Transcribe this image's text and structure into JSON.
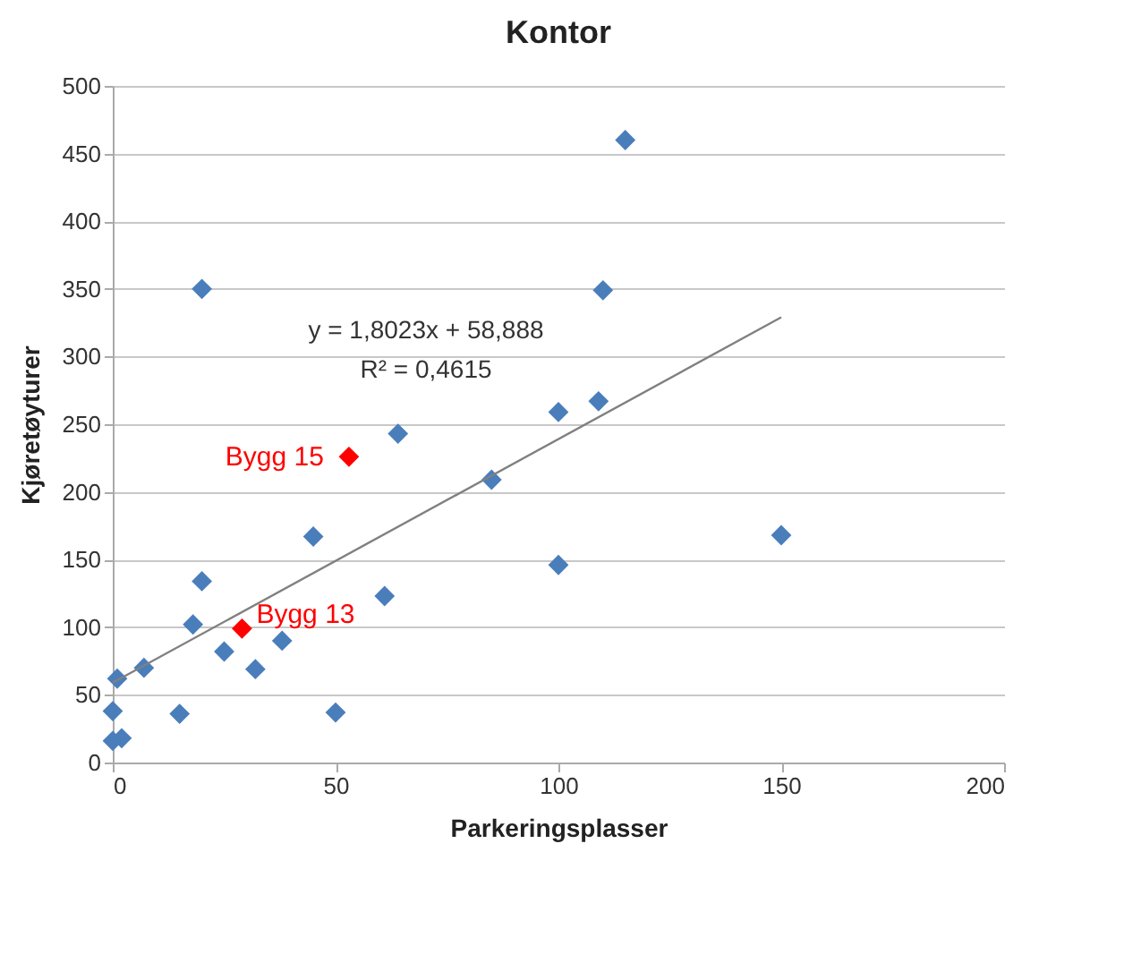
{
  "chart_data": {
    "type": "scatter",
    "title": "Kontor",
    "xlabel": "Parkeringsplasser",
    "ylabel": "Kjøretøyturer",
    "xlim": [
      0,
      200
    ],
    "xticks": [
      0,
      50,
      100,
      150,
      200
    ],
    "ylim": [
      0,
      500
    ],
    "yticks": [
      0,
      50,
      100,
      150,
      200,
      250,
      300,
      350,
      400,
      450,
      500
    ],
    "grid": "y",
    "series": [
      {
        "type": "scatter",
        "marker": "diamond",
        "color": "#4a7ebb",
        "x": [
          20,
          115,
          110,
          109,
          100,
          64,
          85,
          45,
          150,
          100,
          20,
          61,
          18,
          38,
          25,
          32,
          7,
          1,
          0,
          15,
          50,
          0,
          2
        ],
        "values": [
          350,
          460,
          349,
          267,
          259,
          243,
          209,
          167,
          168,
          146,
          134,
          123,
          102,
          90,
          82,
          69,
          70,
          62,
          38,
          36,
          37,
          16,
          18
        ]
      },
      {
        "type": "scatter",
        "marker": "diamond",
        "color": "#ff0000",
        "x": [
          53,
          29
        ],
        "values": [
          226,
          99
        ]
      },
      {
        "type": "line",
        "color": "#808080",
        "x": [
          0,
          150
        ],
        "values": [
          59,
          329
        ]
      }
    ],
    "annotations": [
      "y = 1,8023x + 58,888",
      "R² = 0,4615",
      {
        "text": "Bygg 15",
        "x": 53,
        "y": 226
      },
      {
        "text": "Bygg 13",
        "x": 29,
        "y": 99
      }
    ]
  }
}
